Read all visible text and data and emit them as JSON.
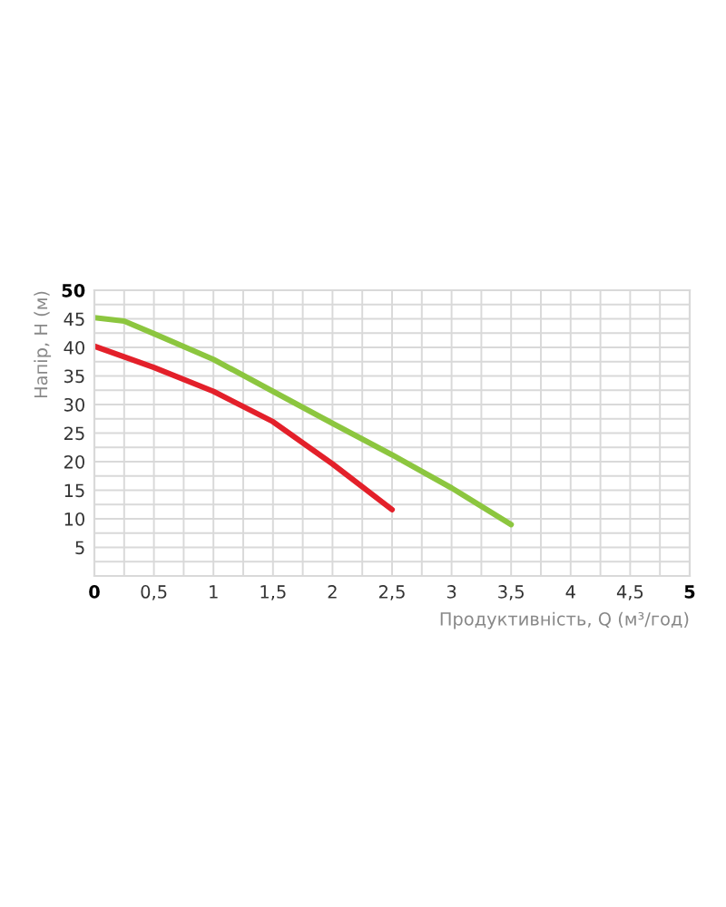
{
  "chart_data": {
    "type": "line",
    "xlabel": "Продуктивність, Q (м³/год)",
    "ylabel": "Напір, H (м)",
    "series": [
      {
        "color": "#e3202a",
        "x": [
          0,
          0.5,
          1,
          1.5,
          2,
          2.5
        ],
        "values": [
          40.2,
          36.5,
          32.3,
          27,
          19.6,
          11.6
        ]
      },
      {
        "color": "#8cc63f",
        "x": [
          0,
          0.25,
          0.5,
          1,
          1.5,
          2,
          2.5,
          3,
          3.5
        ],
        "values": [
          45.2,
          44.6,
          42.4,
          37.9,
          32.3,
          26.7,
          21.2,
          15.4,
          9
        ]
      }
    ],
    "xlim": [
      0,
      5
    ],
    "ylim": [
      0,
      50
    ],
    "xticks": [
      0,
      {
        "value": 0.25,
        "label": null
      },
      {
        "value": 0.5,
        "label": "0,5"
      },
      {
        "value": 0.75,
        "label": null
      },
      1,
      {
        "value": 1.25,
        "label": null
      },
      {
        "value": 1.5,
        "label": "1,5"
      },
      {
        "value": 1.75,
        "label": null
      },
      2,
      {
        "value": 2.25,
        "label": null
      },
      {
        "value": 2.5,
        "label": "2,5"
      },
      {
        "value": 2.75,
        "label": null
      },
      3,
      {
        "value": 3.25,
        "label": null
      },
      {
        "value": 3.5,
        "label": "3,5"
      },
      {
        "value": 3.75,
        "label": null
      },
      4,
      {
        "value": 4.25,
        "label": null
      },
      {
        "value": 4.5,
        "label": "4,5"
      },
      {
        "value": 4.75,
        "label": null
      },
      5
    ],
    "yticks": [
      {
        "value": 0,
        "label": null
      },
      {
        "value": 2.5,
        "label": null
      },
      5,
      {
        "value": 7.5,
        "label": null
      },
      10,
      {
        "value": 12.5,
        "label": null
      },
      15,
      {
        "value": 17.5,
        "label": null
      },
      20,
      {
        "value": 22.5,
        "label": null
      },
      25,
      {
        "value": 27.5,
        "label": null
      },
      30,
      {
        "value": 32.5,
        "label": null
      },
      35,
      {
        "value": 37.5,
        "label": null
      },
      40,
      {
        "value": 42.5,
        "label": null
      },
      45,
      {
        "value": 47.5,
        "label": null
      },
      50
    ],
    "grid": true,
    "marker": "none",
    "line_style": "solid",
    "legend": false
  }
}
